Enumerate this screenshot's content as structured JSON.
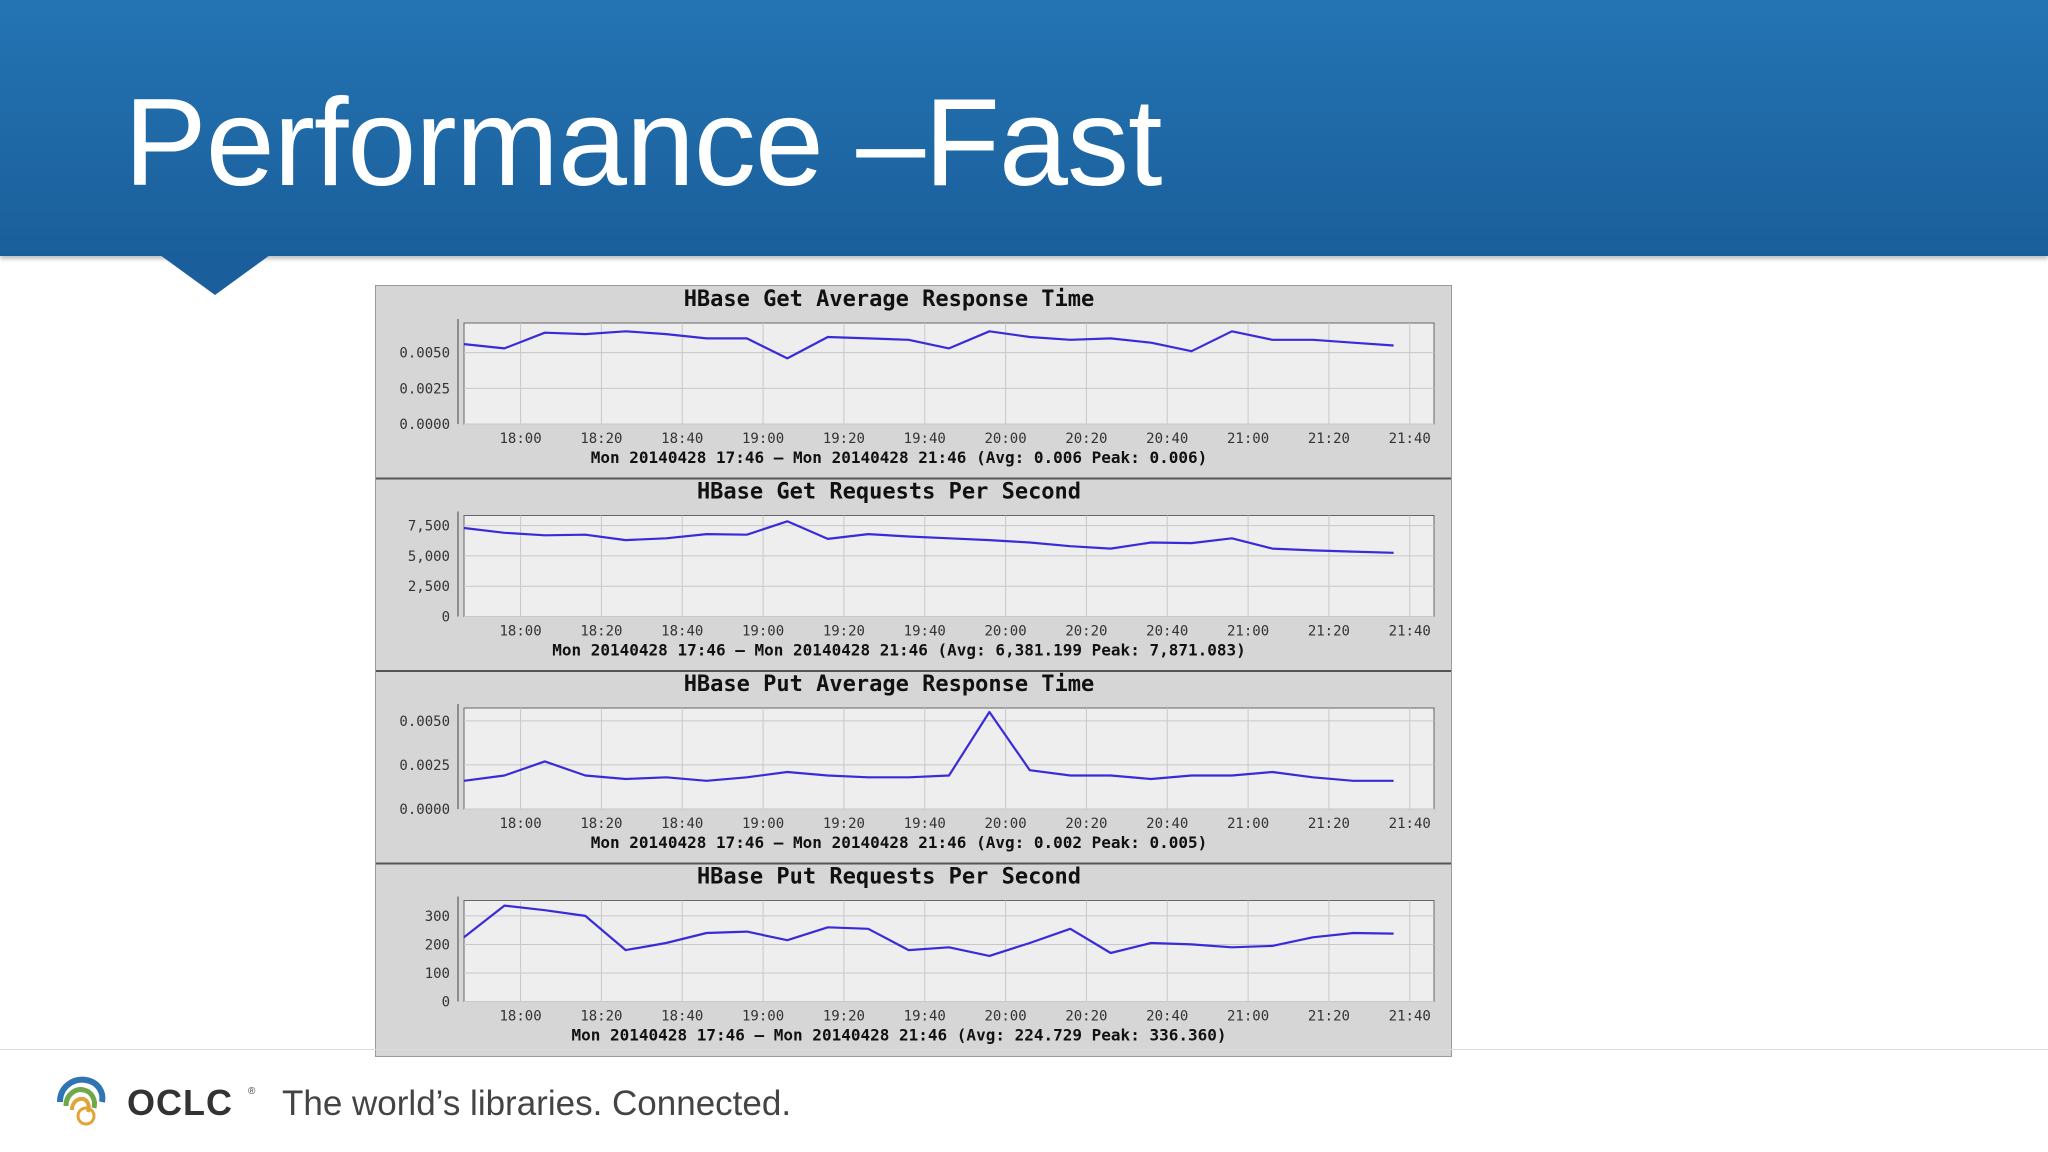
{
  "slide": {
    "title": "Performance –Fast"
  },
  "footer": {
    "brand": "OCLC",
    "trademark": "®",
    "tagline": "The world’s libraries. Connected."
  },
  "colors": {
    "header": "#1f6aa8",
    "line": "#3a2bd8",
    "plot_bg": "#eeeeee",
    "panel_bg": "#d6d6d6"
  },
  "chart_data": [
    {
      "type": "line",
      "title": "HBase Get Average Response Time",
      "x_ticks": [
        "18:00",
        "18:20",
        "18:40",
        "19:00",
        "19:20",
        "19:40",
        "20:00",
        "20:20",
        "20:40",
        "21:00",
        "21:20",
        "21:40"
      ],
      "y_ticks": [
        "0.0050",
        "0.0025",
        "0.0000"
      ],
      "ylim": [
        0,
        0.0068
      ],
      "x": [
        "17:46",
        "17:56",
        "18:06",
        "18:16",
        "18:26",
        "18:36",
        "18:46",
        "18:56",
        "19:06",
        "19:16",
        "19:26",
        "19:36",
        "19:46",
        "19:56",
        "20:06",
        "20:16",
        "20:26",
        "20:36",
        "20:46",
        "20:56",
        "21:06",
        "21:16",
        "21:26",
        "21:36"
      ],
      "values": [
        0.0056,
        0.0053,
        0.0064,
        0.0063,
        0.0065,
        0.0063,
        0.006,
        0.006,
        0.0046,
        0.0061,
        0.006,
        0.0059,
        0.0053,
        0.0065,
        0.0061,
        0.0059,
        0.006,
        0.0057,
        0.0051,
        0.0065,
        0.0059,
        0.0059,
        0.0057,
        0.0055
      ],
      "footer": "Mon 20140428 17:46 – Mon 20140428 21:46 (Avg: 0.006   Peak: 0.006)",
      "grid": true
    },
    {
      "type": "line",
      "title": "HBase Get Requests Per Second",
      "x_ticks": [
        "18:00",
        "18:20",
        "18:40",
        "19:00",
        "19:20",
        "19:40",
        "20:00",
        "20:20",
        "20:40",
        "21:00",
        "21:20",
        "21:40"
      ],
      "y_ticks": [
        "7,500",
        "5,000",
        "2,500",
        "0"
      ],
      "ylim": [
        0,
        8000
      ],
      "x": [
        "17:46",
        "17:56",
        "18:06",
        "18:16",
        "18:26",
        "18:36",
        "18:46",
        "18:56",
        "19:06",
        "19:16",
        "19:26",
        "19:36",
        "19:46",
        "19:56",
        "20:06",
        "20:16",
        "20:26",
        "20:36",
        "20:46",
        "20:56",
        "21:06",
        "21:16",
        "21:26",
        "21:36"
      ],
      "values": [
        7300,
        6900,
        6700,
        6750,
        6300,
        6450,
        6800,
        6750,
        7850,
        6400,
        6800,
        6600,
        6450,
        6300,
        6100,
        5800,
        5600,
        6100,
        6050,
        6450,
        5600,
        5450,
        5350,
        5250
      ],
      "footer": "Mon 20140428 17:46 – Mon 20140428 21:46 (Avg: 6,381.199   Peak: 7,871.083)",
      "grid": true
    },
    {
      "type": "line",
      "title": "HBase Put Average Response Time",
      "x_ticks": [
        "18:00",
        "18:20",
        "18:40",
        "19:00",
        "19:20",
        "19:40",
        "20:00",
        "20:20",
        "20:40",
        "21:00",
        "21:20",
        "21:40"
      ],
      "y_ticks": [
        "0.0050",
        "0.0025",
        "0.0000"
      ],
      "ylim": [
        0,
        0.0055
      ],
      "x": [
        "17:46",
        "17:56",
        "18:06",
        "18:16",
        "18:26",
        "18:36",
        "18:46",
        "18:56",
        "19:06",
        "19:16",
        "19:26",
        "19:36",
        "19:46",
        "19:56",
        "20:06",
        "20:16",
        "20:26",
        "20:36",
        "20:46",
        "20:56",
        "21:06",
        "21:16",
        "21:26",
        "21:36"
      ],
      "values": [
        0.0016,
        0.0019,
        0.0027,
        0.0019,
        0.0017,
        0.0018,
        0.0016,
        0.0018,
        0.0021,
        0.0019,
        0.0018,
        0.0018,
        0.0019,
        0.0055,
        0.0022,
        0.0019,
        0.0019,
        0.0017,
        0.0019,
        0.0019,
        0.0021,
        0.0018,
        0.0016,
        0.0016
      ],
      "footer": "Mon 20140428 17:46 – Mon 20140428 21:46 (Avg: 0.002   Peak: 0.005)",
      "grid": true
    },
    {
      "type": "line",
      "title": "HBase Put Requests Per Second",
      "x_ticks": [
        "18:00",
        "18:20",
        "18:40",
        "19:00",
        "19:20",
        "19:40",
        "20:00",
        "20:20",
        "20:40",
        "21:00",
        "21:20",
        "21:40"
      ],
      "y_ticks": [
        "300",
        "200",
        "100",
        "0"
      ],
      "ylim": [
        0,
        340
      ],
      "x": [
        "17:46",
        "17:56",
        "18:06",
        "18:16",
        "18:26",
        "18:36",
        "18:46",
        "18:56",
        "19:06",
        "19:16",
        "19:26",
        "19:36",
        "19:46",
        "19:56",
        "20:06",
        "20:16",
        "20:26",
        "20:36",
        "20:46",
        "20:56",
        "21:06",
        "21:16",
        "21:26",
        "21:36"
      ],
      "values": [
        225,
        336,
        320,
        300,
        180,
        205,
        240,
        245,
        215,
        260,
        255,
        180,
        190,
        160,
        205,
        255,
        170,
        205,
        200,
        190,
        195,
        225,
        240,
        238
      ],
      "footer": "Mon 20140428 17:46 – Mon 20140428 21:46 (Avg: 224.729   Peak: 336.360)",
      "grid": true
    }
  ]
}
